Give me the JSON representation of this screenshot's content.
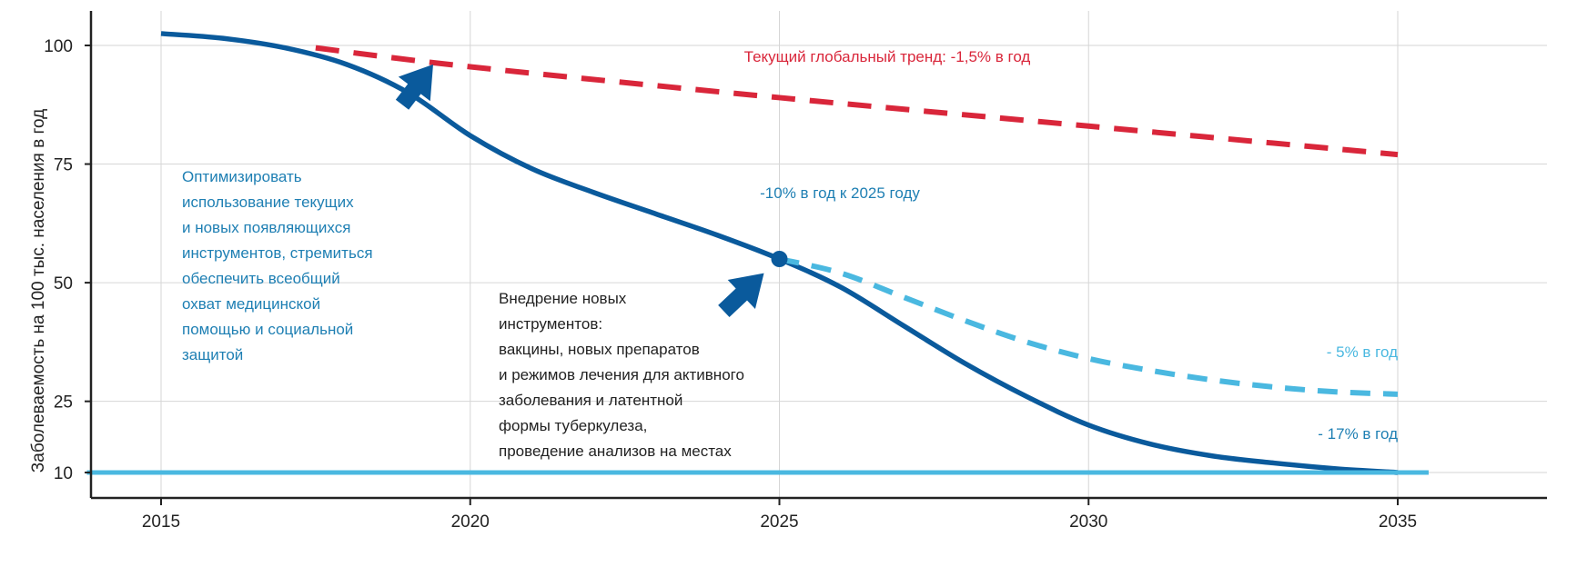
{
  "chart_data": {
    "type": "line",
    "ylabel": "Заболеваемость на 100 тыс. населения в год",
    "xlabel": "",
    "xlim": [
      2015,
      2035
    ],
    "ylim": [
      0,
      108
    ],
    "x_ticks": [
      "2015",
      "2020",
      "2025",
      "2030",
      "2035"
    ],
    "y_ticks": [
      "10",
      "25",
      "50",
      "75",
      "100"
    ],
    "grid": "vertical and horizontal light gridlines",
    "series": [
      {
        "name": "-10% в год к 2025 году",
        "style": "solid",
        "color": "#0a5a9c",
        "x": [
          2015,
          2016,
          2017,
          2018,
          2019,
          2020,
          2021,
          2022,
          2023,
          2024,
          2025,
          2026,
          2027,
          2028,
          2029,
          2030,
          2031,
          2032,
          2033,
          2034,
          2035
        ],
        "y": [
          102.5,
          101.5,
          99.5,
          96,
          90,
          81,
          74,
          69,
          64.5,
          60,
          55,
          49,
          41,
          33,
          26,
          20,
          16,
          13.5,
          12,
          10.8,
          10
        ]
      },
      {
        "name": "Текущий глобальный тренд: -1,5% в год",
        "style": "dashed",
        "color": "#d9263a",
        "x": [
          2017.5,
          2020,
          2025,
          2030,
          2035
        ],
        "y": [
          99.5,
          95.5,
          89,
          83,
          77
        ]
      },
      {
        "name": "- 5% в год",
        "style": "dashed",
        "color": "#4ab8e0",
        "x": [
          2025,
          2026,
          2027,
          2028,
          2029,
          2030,
          2031,
          2032,
          2033,
          2034,
          2035
        ],
        "y": [
          55,
          52,
          47,
          42,
          37.5,
          34,
          31.5,
          29.5,
          28,
          27,
          26.5
        ]
      },
      {
        "name": "- 17% в год",
        "style": "solid",
        "color": "#4ab8e0",
        "x": [
          2013.8,
          2035.5
        ],
        "y": [
          10,
          10
        ]
      }
    ],
    "highlight_point": {
      "x": 2025,
      "y": 55
    },
    "annotations": {
      "global_trend": "Текущий глобальный тренд: -1,5% в год",
      "target_2025": "-10% в год к 2025 году",
      "minus5": "- 5% в год",
      "minus17": "- 17% в год",
      "optimize": [
        "Оптимизировать",
        "использование текущих",
        "и новых появляющихся",
        "инструментов, стремиться",
        "обеспечить всеобщий",
        "охват медицинской",
        "помощью и социальной",
        "защитой"
      ],
      "new_tools": [
        "Внедрение новых",
        "инструментов:",
        "вакцины, новых препаратов",
        "и режимов лечения для активного",
        "заболевания и латентной",
        "формы туберкулеза,",
        "проведение анализов на местах"
      ]
    },
    "arrows": [
      {
        "from": [
          2018.9,
          87.5
        ],
        "to": [
          2019.4,
          96
        ]
      },
      {
        "from": [
          2024.1,
          44
        ],
        "to": [
          2024.75,
          52
        ]
      }
    ],
    "colors": {
      "axis": "#222222",
      "grid": "#d6d6d6",
      "dark_blue": "#0a5a9c",
      "light_blue": "#4ab8e0",
      "red": "#d9263a",
      "annotation_blue": "#1e7fb3",
      "annotation_dark": "#222222"
    }
  }
}
